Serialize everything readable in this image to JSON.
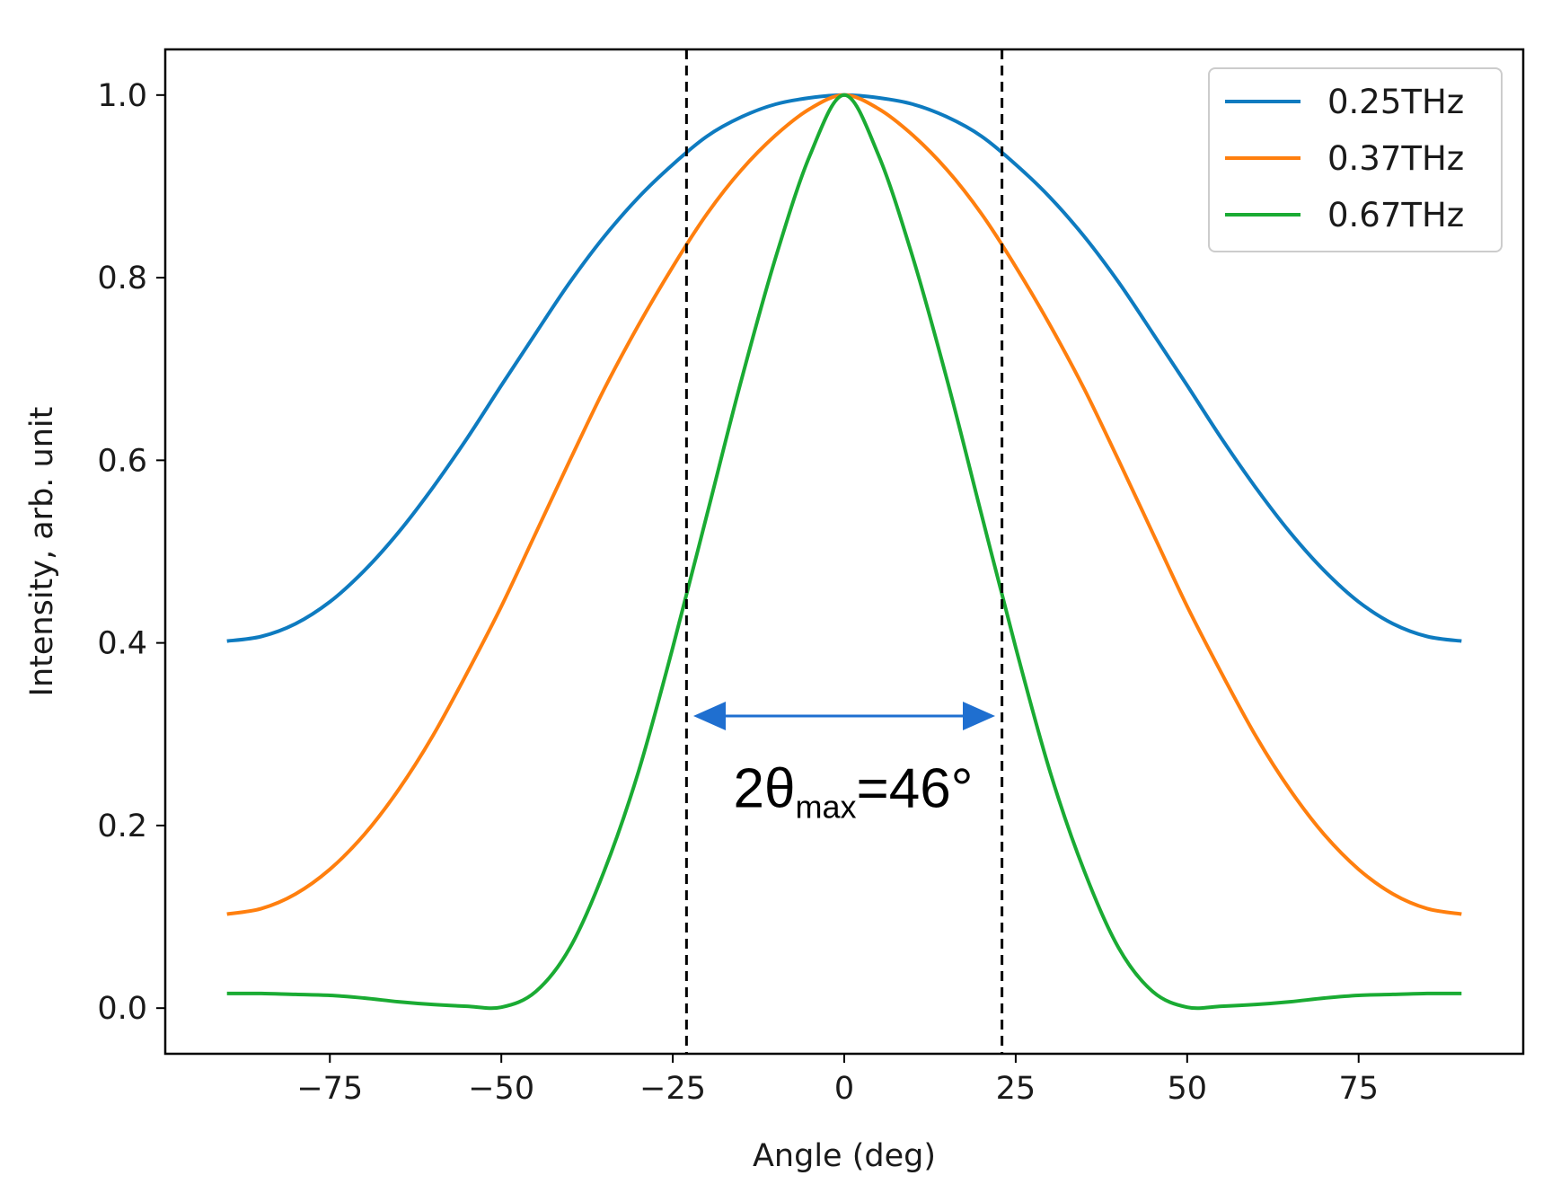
{
  "chart_data": {
    "type": "line",
    "title": "",
    "xlabel": "Angle (deg)",
    "ylabel": "Intensity, arb. unit",
    "xlim": [
      -99,
      99
    ],
    "ylim": [
      -0.05,
      1.05
    ],
    "xticks": [
      -75,
      -50,
      -25,
      0,
      25,
      50,
      75
    ],
    "xtick_labels": [
      "−75",
      "−50",
      "−25",
      "0",
      "25",
      "50",
      "75"
    ],
    "yticks": [
      0.0,
      0.2,
      0.4,
      0.6,
      0.8,
      1.0
    ],
    "ytick_labels": [
      "0.0",
      "0.2",
      "0.4",
      "0.6",
      "0.8",
      "1.0"
    ],
    "grid": false,
    "legend_position": "top-right",
    "x": [
      -90,
      -85,
      -80,
      -75,
      -70,
      -65,
      -60,
      -55,
      -50,
      -45,
      -40,
      -35,
      -30,
      -25,
      -20,
      -15,
      -10,
      -5,
      0,
      5,
      10,
      15,
      20,
      25,
      30,
      35,
      40,
      45,
      50,
      55,
      60,
      65,
      70,
      75,
      80,
      85,
      90
    ],
    "series": [
      {
        "name": "0.25THz",
        "color": "#0e7bc0",
        "values": [
          0.402,
          0.407,
          0.421,
          0.445,
          0.479,
          0.521,
          0.57,
          0.624,
          0.682,
          0.739,
          0.795,
          0.845,
          0.888,
          0.924,
          0.955,
          0.976,
          0.99,
          0.997,
          1.0,
          0.997,
          0.99,
          0.976,
          0.955,
          0.924,
          0.888,
          0.845,
          0.795,
          0.739,
          0.682,
          0.624,
          0.57,
          0.521,
          0.479,
          0.445,
          0.421,
          0.407,
          0.402
        ]
      },
      {
        "name": "0.37THz",
        "color": "#ff7f0e",
        "values": [
          0.103,
          0.109,
          0.125,
          0.152,
          0.19,
          0.239,
          0.298,
          0.367,
          0.44,
          0.52,
          0.6,
          0.678,
          0.748,
          0.812,
          0.87,
          0.918,
          0.956,
          0.985,
          1.0,
          0.985,
          0.956,
          0.918,
          0.87,
          0.812,
          0.748,
          0.678,
          0.6,
          0.52,
          0.44,
          0.367,
          0.298,
          0.239,
          0.19,
          0.152,
          0.125,
          0.109,
          0.103
        ]
      },
      {
        "name": "0.67THz",
        "color": "#1aab33",
        "values": [
          0.016,
          0.016,
          0.015,
          0.014,
          0.011,
          0.007,
          0.004,
          0.002,
          0.001,
          0.018,
          0.066,
          0.15,
          0.259,
          0.395,
          0.541,
          0.688,
          0.822,
          0.934,
          1.0,
          0.934,
          0.822,
          0.688,
          0.541,
          0.395,
          0.259,
          0.15,
          0.066,
          0.018,
          0.001,
          0.002,
          0.004,
          0.007,
          0.011,
          0.014,
          0.015,
          0.016,
          0.016
        ]
      }
    ],
    "vlines": [
      -23,
      23
    ],
    "arrow": {
      "from": -22,
      "to": 22,
      "y": 0.32,
      "color": "#1f6fd0"
    },
    "annotation": {
      "main": "2θ",
      "sub": "max",
      "tail": "=46°",
      "x": 0,
      "y": 0.22
    }
  }
}
